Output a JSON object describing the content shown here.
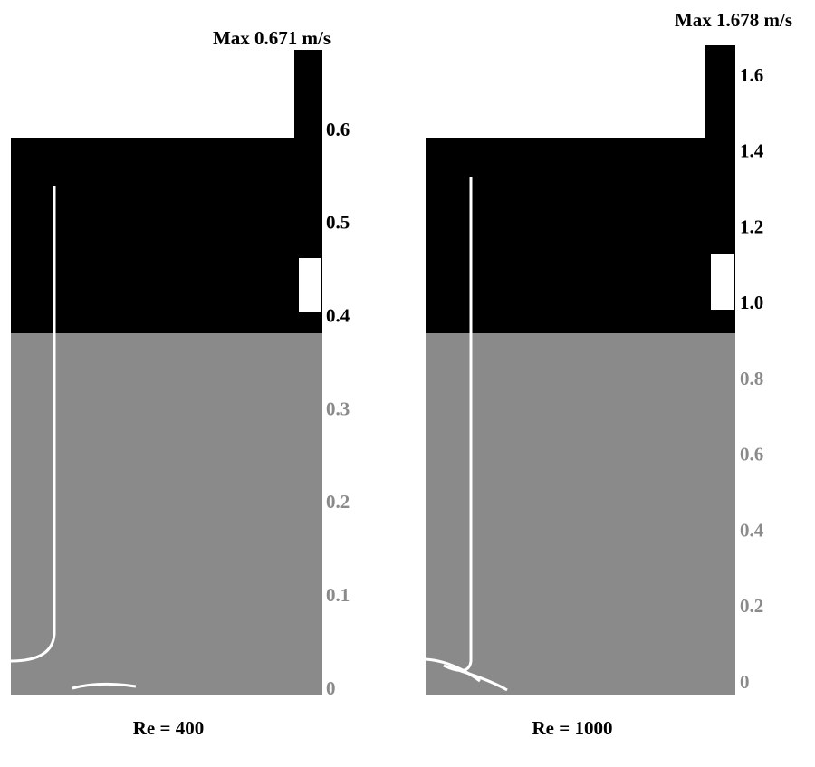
{
  "panels": [
    {
      "max_label": "Max 0.671 m/s",
      "ticks": [
        "0",
        "0.1",
        "0.2",
        "0.3",
        "0.4",
        "0.5",
        "0.6"
      ],
      "caption": "Re = 400"
    },
    {
      "max_label": "Max 1.678 m/s",
      "ticks": [
        "0",
        "0.2",
        "0.4",
        "0.6",
        "0.8",
        "1.0",
        "1.2",
        "1.4",
        "1.6"
      ],
      "caption": "Re = 1000"
    }
  ]
}
